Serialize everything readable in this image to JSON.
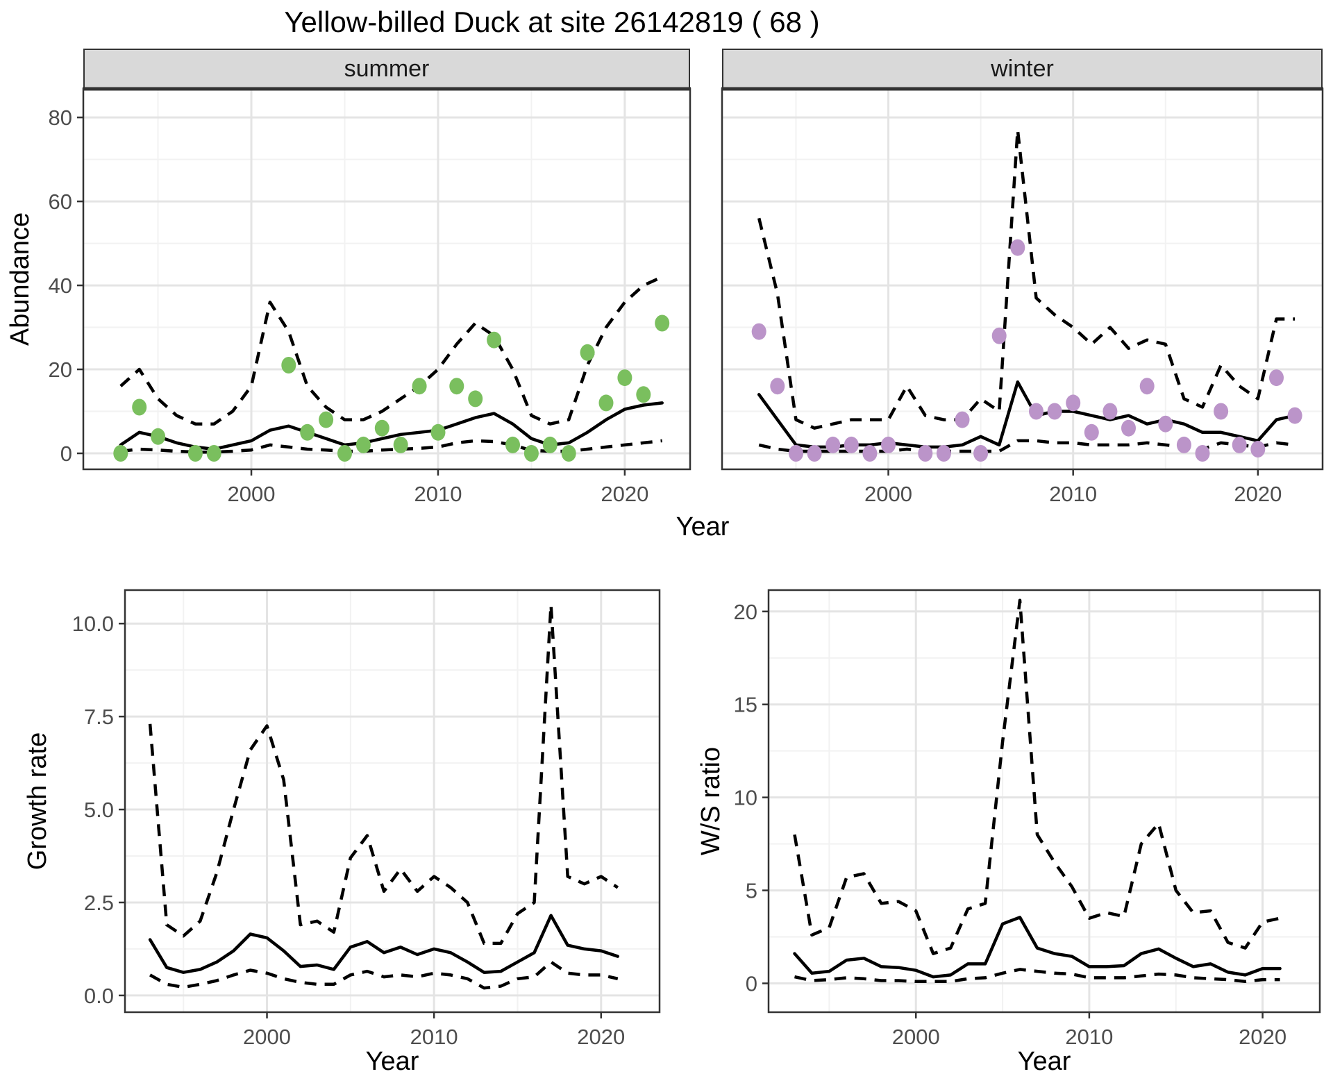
{
  "title": "Yellow-billed Duck at site 26142819 ( 68 )",
  "facets": [
    "summer",
    "winter"
  ],
  "axes": {
    "abundance_label": "Abundance",
    "year_label_top": "Year",
    "growth_label": "Growth rate",
    "growth_year_label": "Year",
    "ws_label": "W/S ratio",
    "ws_year_label": "Year"
  },
  "colors": {
    "summer_point": "#7abf5e",
    "winter_point": "#bb94c9",
    "line": "#000000",
    "strip_bg": "#d9d9d9",
    "panel_border": "#333333",
    "grid_major": "#e4e4e4",
    "grid_minor": "#f2f2f2",
    "tick_text": "#4d4d4d"
  },
  "chart_data": [
    {
      "name": "abundance-summer",
      "type": "line",
      "facet": "summer",
      "xlabel": "Year",
      "ylabel": "Abundance",
      "x_domain": [
        1991.0,
        2023.5
      ],
      "y_domain": [
        -3.8,
        86.8
      ],
      "x_ticks": [
        2000,
        2010,
        2020
      ],
      "x_tick_labels": [
        "2000",
        "2010",
        "2020"
      ],
      "x_minor": [
        1995,
        2005,
        2015
      ],
      "y_ticks": [
        0,
        20,
        40,
        60,
        80
      ],
      "y_tick_labels": [
        "0",
        "20",
        "40",
        "60",
        "80"
      ],
      "y_minor": [
        10,
        30,
        50,
        70
      ],
      "left_axis": true,
      "years": [
        1993,
        1994,
        1995,
        1996,
        1997,
        1998,
        1999,
        2000,
        2001,
        2002,
        2003,
        2004,
        2005,
        2006,
        2007,
        2008,
        2009,
        2010,
        2011,
        2012,
        2013,
        2014,
        2015,
        2016,
        2017,
        2018,
        2019,
        2020,
        2021,
        2022
      ],
      "fit": [
        2,
        5,
        4,
        2.5,
        1.5,
        1,
        2,
        3,
        5.5,
        6.5,
        5,
        3.5,
        2,
        2.5,
        3.5,
        4.5,
        5,
        5.5,
        7,
        8.5,
        9.5,
        7,
        3.5,
        2,
        2.5,
        5,
        8,
        10.5,
        11.5,
        12
      ],
      "upper": [
        16,
        20,
        13,
        9,
        7,
        7,
        10,
        16,
        36,
        29,
        16,
        11,
        8,
        8,
        10,
        13,
        16,
        20,
        26,
        31,
        28,
        20,
        9,
        7,
        8,
        21,
        30,
        36,
        40,
        42
      ],
      "lower": [
        0.5,
        1,
        0.8,
        0.5,
        0.3,
        0.3,
        0.5,
        0.8,
        2,
        1.5,
        1,
        0.8,
        0.5,
        0.5,
        0.8,
        1,
        1.2,
        1.5,
        2.5,
        3,
        2.8,
        2,
        0.7,
        0.5,
        0.5,
        1,
        1.5,
        2,
        2.5,
        3
      ],
      "points": {
        "years": [
          1993,
          1994,
          1995,
          1997,
          1998,
          2002,
          2003,
          2004,
          2005,
          2006,
          2007,
          2008,
          2009,
          2010,
          2011,
          2012,
          2013,
          2014,
          2015,
          2016,
          2017,
          2018,
          2019,
          2020,
          2021,
          2022
        ],
        "values": [
          0,
          11,
          4,
          0,
          0,
          21,
          5,
          8,
          0,
          2,
          6,
          2,
          16,
          5,
          16,
          13,
          27,
          2,
          0,
          2,
          0,
          24,
          12,
          18,
          14,
          31
        ],
        "color": "#7abf5e"
      }
    },
    {
      "name": "abundance-winter",
      "type": "line",
      "facet": "winter",
      "xlabel": "Year",
      "ylabel": "Abundance",
      "x_domain": [
        1991.0,
        2023.5
      ],
      "y_domain": [
        -3.8,
        86.8
      ],
      "x_ticks": [
        2000,
        2010,
        2020
      ],
      "x_tick_labels": [
        "2000",
        "2010",
        "2020"
      ],
      "x_minor": [
        1995,
        2005,
        2015
      ],
      "y_ticks": [
        0,
        20,
        40,
        60,
        80
      ],
      "y_tick_labels": [
        "0",
        "20",
        "40",
        "60",
        "80"
      ],
      "y_minor": [
        10,
        30,
        50,
        70
      ],
      "left_axis": false,
      "years": [
        1993,
        1994,
        1995,
        1996,
        1997,
        1998,
        1999,
        2000,
        2001,
        2002,
        2003,
        2004,
        2005,
        2006,
        2007,
        2008,
        2009,
        2010,
        2011,
        2012,
        2013,
        2014,
        2015,
        2016,
        2017,
        2018,
        2019,
        2020,
        2021,
        2022
      ],
      "fit": [
        14,
        8,
        2,
        1.5,
        1.5,
        2,
        2,
        2.5,
        2,
        1.5,
        1.5,
        2,
        4,
        2,
        17,
        9,
        10,
        10,
        9,
        8,
        9,
        7,
        8,
        7,
        5,
        5,
        4,
        3,
        8,
        9
      ],
      "upper": [
        56,
        38,
        8,
        6,
        7,
        8,
        8,
        8,
        16,
        9,
        8,
        8,
        13,
        10,
        77,
        37,
        33,
        30,
        26,
        30,
        25,
        27,
        26,
        13,
        11,
        21,
        16,
        13,
        32,
        32
      ],
      "lower": [
        2,
        1,
        0.5,
        0.5,
        0.5,
        0.5,
        0.5,
        0.5,
        1,
        0.5,
        0.5,
        0.5,
        0.5,
        0.5,
        3,
        3,
        2.5,
        2.5,
        2,
        2,
        2,
        2.5,
        2,
        1.5,
        1,
        2.5,
        2,
        1.5,
        2.5,
        2
      ],
      "points": {
        "years": [
          1993,
          1994,
          1995,
          1996,
          1997,
          1998,
          1999,
          2000,
          2002,
          2003,
          2004,
          2005,
          2006,
          2007,
          2008,
          2009,
          2010,
          2011,
          2012,
          2013,
          2014,
          2015,
          2016,
          2017,
          2018,
          2019,
          2020,
          2021,
          2022
        ],
        "values": [
          29,
          16,
          0,
          0,
          2,
          2,
          0,
          2,
          0,
          0,
          8,
          0,
          28,
          49,
          10,
          10,
          12,
          5,
          10,
          6,
          16,
          7,
          2,
          0,
          10,
          2,
          1,
          18,
          9
        ],
        "color": "#bb94c9"
      }
    },
    {
      "name": "growth-rate",
      "type": "line",
      "facet": null,
      "xlabel": "Year",
      "ylabel": "Growth rate",
      "x_domain": [
        1991.5,
        2023.5
      ],
      "y_domain": [
        -0.45,
        10.9
      ],
      "x_ticks": [
        2000,
        2010,
        2020
      ],
      "x_tick_labels": [
        "2000",
        "2010",
        "2020"
      ],
      "x_minor": [
        1995,
        2005,
        2015
      ],
      "y_ticks": [
        0,
        2.5,
        5,
        7.5,
        10
      ],
      "y_tick_labels": [
        "0.0",
        "2.5",
        "5.0",
        "7.5",
        "10.0"
      ],
      "y_minor": [
        1.25,
        3.75,
        6.25,
        8.75
      ],
      "left_axis": true,
      "years": [
        1993,
        1994,
        1995,
        1996,
        1997,
        1998,
        1999,
        2000,
        2001,
        2002,
        2003,
        2004,
        2005,
        2006,
        2007,
        2008,
        2009,
        2010,
        2011,
        2012,
        2013,
        2014,
        2015,
        2016,
        2017,
        2018,
        2019,
        2020,
        2021
      ],
      "fit": [
        1.5,
        0.75,
        0.62,
        0.7,
        0.9,
        1.2,
        1.65,
        1.55,
        1.2,
        0.78,
        0.82,
        0.7,
        1.3,
        1.45,
        1.15,
        1.3,
        1.1,
        1.25,
        1.15,
        0.9,
        0.62,
        0.65,
        0.9,
        1.15,
        2.15,
        1.35,
        1.25,
        1.2,
        1.05
      ],
      "upper": [
        7.3,
        1.9,
        1.6,
        2.0,
        3.3,
        5.0,
        6.6,
        7.25,
        5.8,
        1.9,
        2.0,
        1.7,
        3.7,
        4.3,
        2.8,
        3.4,
        2.8,
        3.2,
        2.9,
        2.5,
        1.4,
        1.4,
        2.2,
        2.5,
        10.5,
        3.2,
        3.0,
        3.2,
        2.9
      ],
      "lower": [
        0.55,
        0.3,
        0.22,
        0.3,
        0.4,
        0.55,
        0.68,
        0.6,
        0.45,
        0.35,
        0.3,
        0.3,
        0.55,
        0.65,
        0.5,
        0.55,
        0.5,
        0.6,
        0.55,
        0.45,
        0.2,
        0.25,
        0.45,
        0.5,
        0.9,
        0.6,
        0.55,
        0.55,
        0.45
      ],
      "points": null
    },
    {
      "name": "ws-ratio",
      "type": "line",
      "facet": null,
      "xlabel": "Year",
      "ylabel": "W/S ratio",
      "x_domain": [
        1991.5,
        2023.3
      ],
      "y_domain": [
        -1.55,
        21.15
      ],
      "x_ticks": [
        2000,
        2010,
        2020
      ],
      "x_tick_labels": [
        "2000",
        "2010",
        "2020"
      ],
      "x_minor": [
        1995,
        2005,
        2015
      ],
      "y_ticks": [
        0,
        5,
        10,
        15,
        20
      ],
      "y_tick_labels": [
        "0",
        "5",
        "10",
        "15",
        "20"
      ],
      "y_minor": [
        2.5,
        7.5,
        12.5,
        17.5
      ],
      "left_axis": true,
      "years": [
        1993,
        1994,
        1995,
        1996,
        1997,
        1998,
        1999,
        2000,
        2001,
        2002,
        2003,
        2004,
        2005,
        2006,
        2007,
        2008,
        2009,
        2010,
        2011,
        2012,
        2013,
        2014,
        2015,
        2016,
        2017,
        2018,
        2019,
        2020,
        2021
      ],
      "fit": [
        1.6,
        0.55,
        0.65,
        1.25,
        1.35,
        0.9,
        0.85,
        0.7,
        0.35,
        0.45,
        1.05,
        1.05,
        3.2,
        3.55,
        1.9,
        1.6,
        1.45,
        0.9,
        0.9,
        0.95,
        1.6,
        1.85,
        1.35,
        0.9,
        1.05,
        0.6,
        0.45,
        0.8,
        0.8
      ],
      "upper": [
        8.0,
        2.6,
        3.0,
        5.7,
        5.9,
        4.3,
        4.4,
        3.9,
        1.6,
        1.9,
        4.0,
        4.3,
        13.0,
        20.6,
        8.0,
        6.5,
        5.2,
        3.5,
        3.8,
        3.6,
        7.5,
        8.6,
        5.0,
        3.8,
        3.9,
        2.2,
        1.9,
        3.3,
        3.5
      ],
      "lower": [
        0.35,
        0.15,
        0.2,
        0.3,
        0.25,
        0.15,
        0.15,
        0.1,
        0.1,
        0.1,
        0.25,
        0.3,
        0.55,
        0.75,
        0.65,
        0.55,
        0.5,
        0.3,
        0.3,
        0.3,
        0.4,
        0.5,
        0.45,
        0.3,
        0.25,
        0.2,
        0.1,
        0.2,
        0.2
      ],
      "points": null
    }
  ]
}
